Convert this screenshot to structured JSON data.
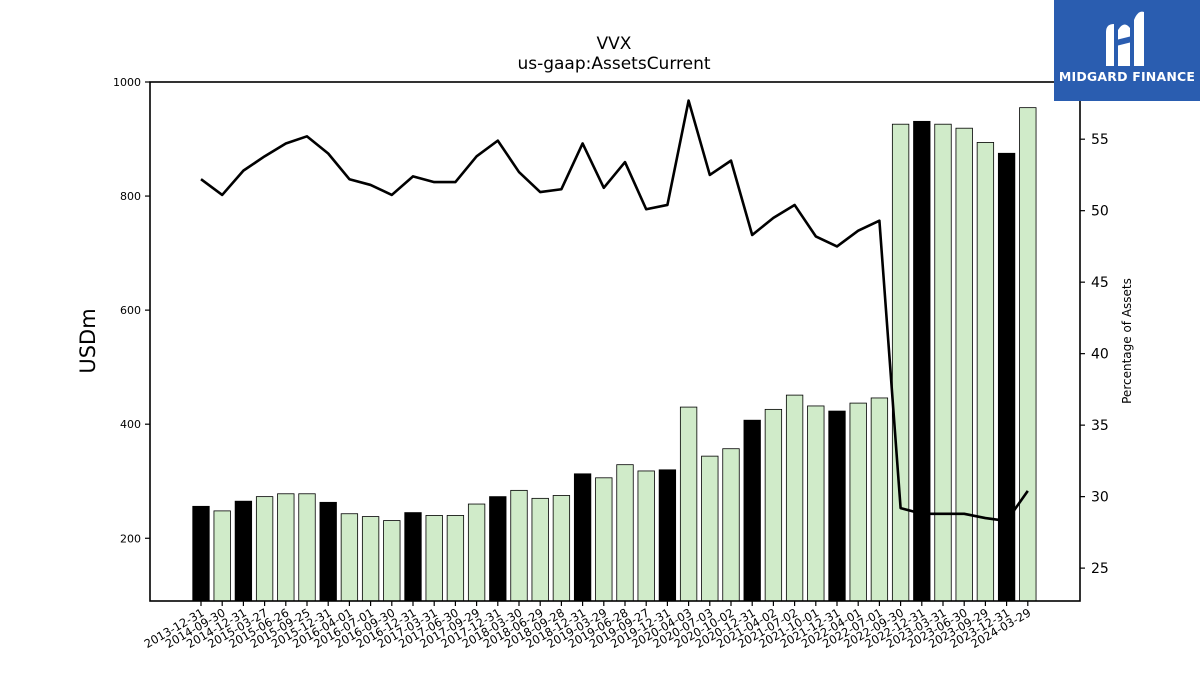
{
  "chart_data": {
    "type": "bar",
    "title": "VVX",
    "subtitle": "us-gaap:AssetsCurrent",
    "ylabel": "USDm",
    "y2label": "Percentage of Assets",
    "ylim": [
      90,
      1000
    ],
    "y2lim": [
      22.7,
      59.0
    ],
    "yticks": [
      200,
      400,
      600,
      800,
      1000
    ],
    "y2ticks": [
      25,
      30,
      35,
      40,
      45,
      50,
      55
    ],
    "grid": false,
    "categories": [
      "2013-12-31",
      "2014-09-30",
      "2014-12-31",
      "2015-03-27",
      "2015-06-26",
      "2015-09-25",
      "2015-12-31",
      "2016-04-01",
      "2016-07-01",
      "2016-09-30",
      "2016-12-31",
      "2017-03-31",
      "2017-06-30",
      "2017-09-29",
      "2017-12-31",
      "2018-03-30",
      "2018-06-29",
      "2018-09-28",
      "2018-12-31",
      "2019-03-29",
      "2019-06-28",
      "2019-09-27",
      "2019-12-31",
      "2020-04-03",
      "2020-07-03",
      "2020-10-02",
      "2020-12-31",
      "2021-04-02",
      "2021-07-02",
      "2021-10-01",
      "2021-12-31",
      "2022-04-01",
      "2022-07-01",
      "2022-09-30",
      "2022-12-31",
      "2023-03-31",
      "2023-06-30",
      "2023-09-29",
      "2023-12-31",
      "2024-03-29"
    ],
    "series": [
      {
        "kind": "bar",
        "values": [
          256,
          248,
          265,
          273,
          278,
          278,
          263,
          243,
          238,
          231,
          245,
          240,
          240,
          260,
          273,
          284,
          270,
          275,
          313,
          306,
          329,
          318,
          320,
          430,
          344,
          357,
          407,
          426,
          451,
          432,
          423,
          437,
          446,
          926,
          931,
          926,
          919,
          894,
          875,
          955
        ],
        "highlight": [
          true,
          false,
          true,
          false,
          false,
          false,
          true,
          false,
          false,
          false,
          true,
          false,
          false,
          false,
          true,
          false,
          false,
          false,
          true,
          false,
          false,
          false,
          true,
          false,
          false,
          false,
          true,
          false,
          false,
          false,
          true,
          false,
          false,
          false,
          true,
          false,
          false,
          false,
          true,
          false
        ]
      },
      {
        "kind": "line",
        "axis": "right",
        "values": [
          52.2,
          51.1,
          52.8,
          53.8,
          54.7,
          55.2,
          54.0,
          52.2,
          51.8,
          51.1,
          52.4,
          52.0,
          52.0,
          53.8,
          54.9,
          52.7,
          51.3,
          51.5,
          54.7,
          51.6,
          53.4,
          50.1,
          50.4,
          57.7,
          52.5,
          53.5,
          48.3,
          49.5,
          50.4,
          48.2,
          47.5,
          48.6,
          49.3,
          29.2,
          28.8,
          28.8,
          28.8,
          28.5,
          28.3,
          30.4
        ]
      }
    ],
    "colors": {
      "bar_fill": "#d0ebc9",
      "bar_highlight": "#000000",
      "bar_edge": "#000000",
      "line": "#000000"
    }
  },
  "brand": {
    "name": "MIDGARD FINANCE",
    "color": "#2a5db0"
  }
}
